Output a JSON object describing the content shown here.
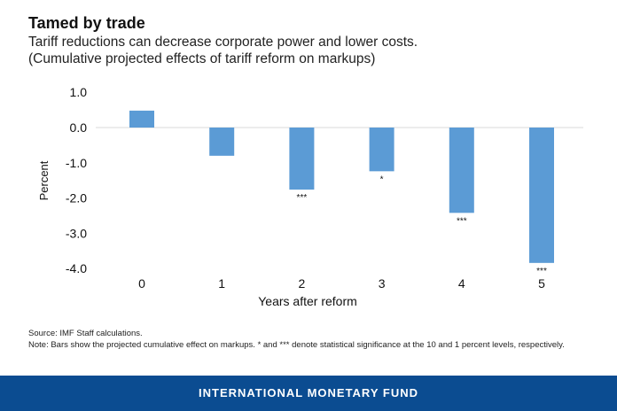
{
  "chart_data": {
    "type": "bar",
    "title": "Tamed by trade",
    "subtitle": [
      "Tariff reductions can decrease corporate power and lower costs.",
      "(Cumulative projected effects of tariff reform on markups)"
    ],
    "xlabel": "Years after reform",
    "ylabel": "Percent",
    "categories": [
      "0",
      "1",
      "2",
      "3",
      "4",
      "5"
    ],
    "values": [
      0.48,
      -0.8,
      -1.76,
      -1.24,
      -2.42,
      -3.84
    ],
    "annotations": [
      "",
      "",
      "***",
      "*",
      "***",
      "***"
    ],
    "ylim": [
      -4.0,
      1.0
    ],
    "yticks": [
      "1.0",
      "0.0",
      "-1.0",
      "-2.0",
      "-3.0",
      "-4.0"
    ],
    "ytick_values": [
      1,
      0,
      -1,
      -2,
      -3,
      -4
    ],
    "bar_color": "#5b9bd5",
    "grid": false
  },
  "notes": {
    "source": "Source: IMF Staff calculations.",
    "note": "Note: Bars show the projected cumulative effect on markups. * and *** denote statistical significance at the 10 and 1 percent levels, respectively."
  },
  "footer": {
    "label": "INTERNATIONAL MONETARY FUND",
    "color": "#0b4c91"
  }
}
